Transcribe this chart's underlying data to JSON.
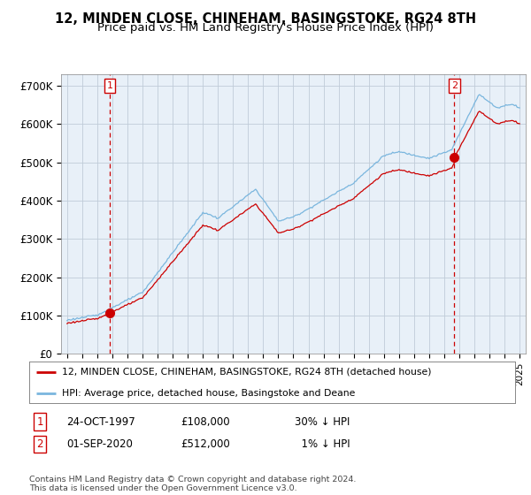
{
  "title": "12, MINDEN CLOSE, CHINEHAM, BASINGSTOKE, RG24 8TH",
  "subtitle": "Price paid vs. HM Land Registry's House Price Index (HPI)",
  "ylim": [
    0,
    730000
  ],
  "yticks": [
    0,
    100000,
    200000,
    300000,
    400000,
    500000,
    600000,
    700000
  ],
  "ytick_labels": [
    "£0",
    "£100K",
    "£200K",
    "£300K",
    "£400K",
    "£500K",
    "£600K",
    "£700K"
  ],
  "hpi_color": "#7ab6de",
  "price_color": "#cc0000",
  "sale1_date": 1997.82,
  "sale1_price": 108000,
  "sale1_label": "1",
  "sale2_date": 2020.67,
  "sale2_price": 512000,
  "sale2_label": "2",
  "legend_line1": "12, MINDEN CLOSE, CHINEHAM, BASINGSTOKE, RG24 8TH (detached house)",
  "legend_line2": "HPI: Average price, detached house, Basingstoke and Deane",
  "background_color": "#ffffff",
  "plot_bg_color": "#e8f0f8",
  "grid_color": "#c0ccd8",
  "title_fontsize": 10.5,
  "subtitle_fontsize": 9.5,
  "footer": "Contains HM Land Registry data © Crown copyright and database right 2024.\nThis data is licensed under the Open Government Licence v3.0."
}
